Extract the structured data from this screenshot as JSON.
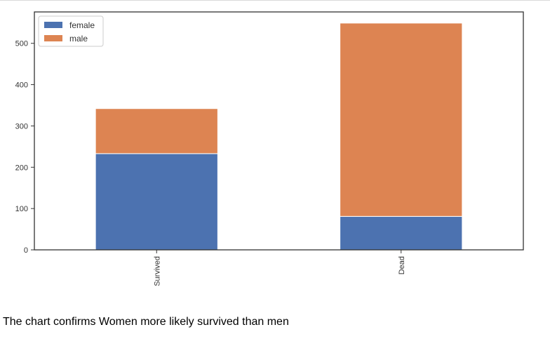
{
  "caption": "The chart confirms Women more likely survived than men",
  "chart_data": {
    "type": "bar",
    "stacked": true,
    "categories": [
      "Survived",
      "Dead"
    ],
    "series": [
      {
        "name": "female",
        "values": [
          233,
          81
        ],
        "color": "#4c72b0"
      },
      {
        "name": "male",
        "values": [
          109,
          468
        ],
        "color": "#dd8452"
      }
    ],
    "title": "",
    "xlabel": "",
    "ylabel": "",
    "ylim": [
      0,
      576
    ],
    "yticks": [
      0,
      100,
      200,
      300,
      400,
      500
    ],
    "grid": false,
    "legend_position": "top-left"
  }
}
